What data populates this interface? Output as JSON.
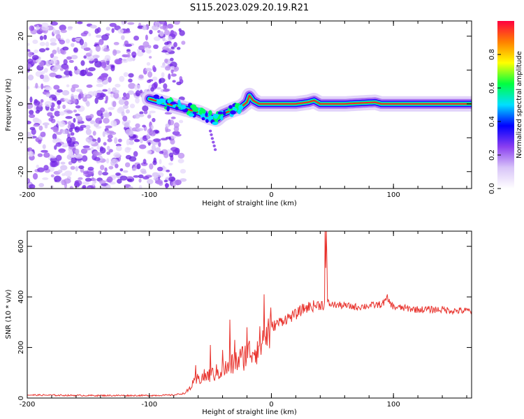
{
  "figure_title": "S115.2023.029.20.19.R21",
  "chart_data": [
    {
      "type": "heatmap",
      "title": "",
      "xlabel": "Height of straight line (km)",
      "ylabel": "Frequency (Hz)",
      "xlim": [
        -200,
        164
      ],
      "ylim": [
        -25,
        24.5
      ],
      "x_ticks": [
        -200,
        -100,
        0,
        100
      ],
      "y_ticks": [
        -20,
        -10,
        0,
        10,
        20
      ],
      "x_tick_labels": [
        "-200",
        "-100",
        "0",
        "100"
      ],
      "y_tick_labels": [
        "-20",
        "-10",
        "0",
        "10",
        "20"
      ],
      "noise_region_x": [
        -200,
        -80
      ],
      "signal_track": {
        "x": [
          -100,
          -90,
          -80,
          -70,
          -60,
          -50,
          -45,
          -40,
          -30,
          -25,
          -20,
          -18,
          -15,
          -10,
          0,
          20,
          30,
          35,
          40,
          60,
          85,
          90,
          100,
          130,
          164
        ],
        "y": [
          1.5,
          0.5,
          -0.5,
          -1.5,
          -2.5,
          -4.0,
          -4.5,
          -3.0,
          -1.5,
          -1.0,
          0.5,
          2.5,
          1.0,
          0,
          0,
          0,
          0.5,
          1.0,
          0,
          0,
          0.5,
          0,
          0,
          0,
          0
        ]
      },
      "grid": false,
      "colorbar": {
        "label": "Normalized spectral amplitude",
        "range": [
          0.0,
          1.0
        ],
        "ticks": [
          0.0,
          0.2,
          0.4,
          0.6,
          0.8
        ],
        "tick_labels": [
          "0.0",
          "0.2",
          "0.4",
          "0.6",
          "0.8"
        ],
        "colormap": [
          "#ffffff",
          "#d8c4f8",
          "#8a3ef0",
          "#0000ff",
          "#00e0ff",
          "#00ff40",
          "#ffff00",
          "#ff8000",
          "#ff0040"
        ]
      }
    },
    {
      "type": "line",
      "title": "",
      "xlabel": "Height of straight line (km)",
      "ylabel": "SNR (10 * v/v)",
      "xlim": [
        -200,
        164
      ],
      "ylim": [
        0,
        660
      ],
      "x_ticks": [
        -200,
        -100,
        0,
        100
      ],
      "y_ticks": [
        0,
        200,
        400,
        600
      ],
      "x_tick_labels": [
        "-200",
        "-100",
        "0",
        "100"
      ],
      "y_tick_labels": [
        "0",
        "200",
        "400",
        "600"
      ],
      "grid": false,
      "series": [
        {
          "color": "#e8322c",
          "x": [
            -200,
            -150,
            -100,
            -80,
            -70,
            -65,
            -60,
            -55,
            -50,
            -45,
            -40,
            -35,
            -30,
            -25,
            -20,
            -15,
            -10,
            -5,
            0,
            10,
            20,
            25,
            30,
            35,
            40,
            44,
            45,
            46,
            48,
            50,
            60,
            70,
            80,
            90,
            95,
            100,
            110,
            120,
            130,
            140,
            150,
            164
          ],
          "y": [
            12,
            10,
            10,
            12,
            20,
            50,
            75,
            85,
            90,
            100,
            110,
            120,
            140,
            155,
            175,
            190,
            210,
            245,
            280,
            310,
            330,
            350,
            360,
            365,
            370,
            370,
            660,
            380,
            370,
            370,
            365,
            360,
            365,
            370,
            390,
            360,
            355,
            350,
            350,
            350,
            345,
            345
          ],
          "spikes": [
            {
              "x": -62,
              "y": 130
            },
            {
              "x": -50,
              "y": 210
            },
            {
              "x": -40,
              "y": 190
            },
            {
              "x": -34,
              "y": 310
            },
            {
              "x": -30,
              "y": 230
            },
            {
              "x": -20,
              "y": 280
            },
            {
              "x": -6,
              "y": 410
            },
            {
              "x": 44,
              "y": 660
            },
            {
              "x": 95,
              "y": 410
            }
          ]
        }
      ]
    }
  ]
}
